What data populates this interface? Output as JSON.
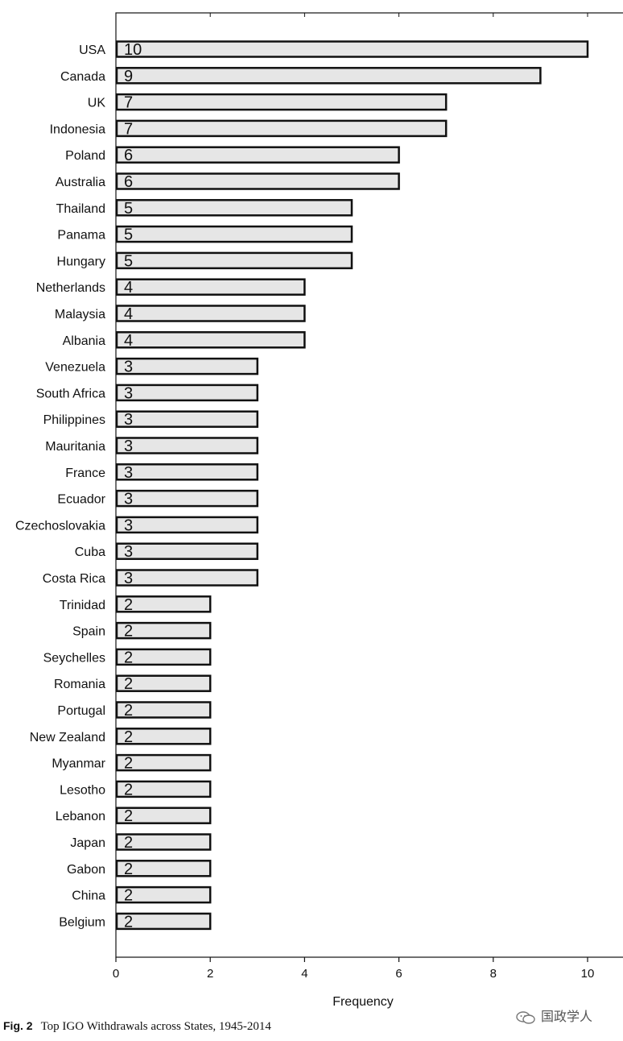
{
  "chart_data": {
    "type": "bar",
    "orientation": "horizontal",
    "categories": [
      "USA",
      "Canada",
      "UK",
      "Indonesia",
      "Poland",
      "Australia",
      "Thailand",
      "Panama",
      "Hungary",
      "Netherlands",
      "Malaysia",
      "Albania",
      "Venezuela",
      "South Africa",
      "Philippines",
      "Mauritania",
      "France",
      "Ecuador",
      "Czechoslovakia",
      "Cuba",
      "Costa Rica",
      "Trinidad",
      "Spain",
      "Seychelles",
      "Romania",
      "Portugal",
      "New Zealand",
      "Myanmar",
      "Lesotho",
      "Lebanon",
      "Japan",
      "Gabon",
      "China",
      "Belgium"
    ],
    "values": [
      10,
      9,
      7,
      7,
      6,
      6,
      5,
      5,
      5,
      4,
      4,
      4,
      3,
      3,
      3,
      3,
      3,
      3,
      3,
      3,
      3,
      2,
      2,
      2,
      2,
      2,
      2,
      2,
      2,
      2,
      2,
      2,
      2,
      2
    ],
    "xlabel": "Frequency",
    "ylabel": "",
    "xlim": [
      0,
      10
    ],
    "xticks": [
      "0",
      "2",
      "4",
      "6",
      "8",
      "10"
    ],
    "grid": false,
    "bar_fill": "#e6e6e6",
    "bar_stroke": "#111111"
  },
  "caption": {
    "figure_label": "Fig. 2",
    "text": "Top IGO Withdrawals across States, 1945-2014"
  },
  "watermark": {
    "text": "国政学人",
    "icon": "wechat-icon"
  }
}
